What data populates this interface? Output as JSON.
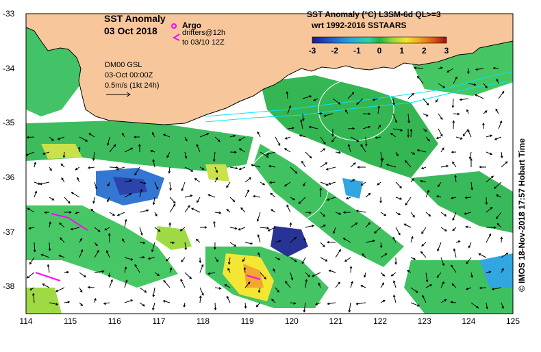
{
  "title": {
    "line1": "SST Anomaly",
    "line2": "03 Oct 2018"
  },
  "argo": {
    "label": "Argo",
    "drifters": "drifters@12h",
    "drifters_window": "to 03/10 12Z"
  },
  "currents_note": {
    "line1": "DM00 GSL",
    "line2": "03-Oct 00:00Z",
    "line3": "0.5m/s (1kt 24h)"
  },
  "colorbar": {
    "title": "SST Anomaly (°C) L3SM-6d QL>=3",
    "subtitle": "wrt 1992-2016 SSTAARS",
    "ticks": [
      "-3",
      "-2",
      "-1",
      "0",
      "1",
      "2",
      "3"
    ],
    "min": -3,
    "max": 3,
    "colors": [
      "#1a1a8c",
      "#1f5ec7",
      "#27a2e0",
      "#2ed4a8",
      "#22b04a",
      "#9ad93a",
      "#f4e62a",
      "#f2a424",
      "#dd5a1a",
      "#a01010"
    ]
  },
  "axes": {
    "lon_ticks": [
      "114",
      "115",
      "116",
      "117",
      "118",
      "119",
      "120",
      "121",
      "122",
      "123",
      "124",
      "125"
    ],
    "lat_ticks": [
      "-33",
      "-34",
      "-35",
      "-36",
      "-37",
      "-38"
    ],
    "lon_range": [
      114,
      125
    ],
    "lat_range": [
      -38.5,
      -33
    ]
  },
  "timestamp": "© IMOS 18-Nov-2018 17:57 Hobart Time",
  "colors": {
    "land": "#f7c79b",
    "ocean_blank": "#ffffff",
    "argo_marker": "#ff00ff",
    "drifter": "#ff00ff",
    "current_contour": "#00e5ff"
  }
}
